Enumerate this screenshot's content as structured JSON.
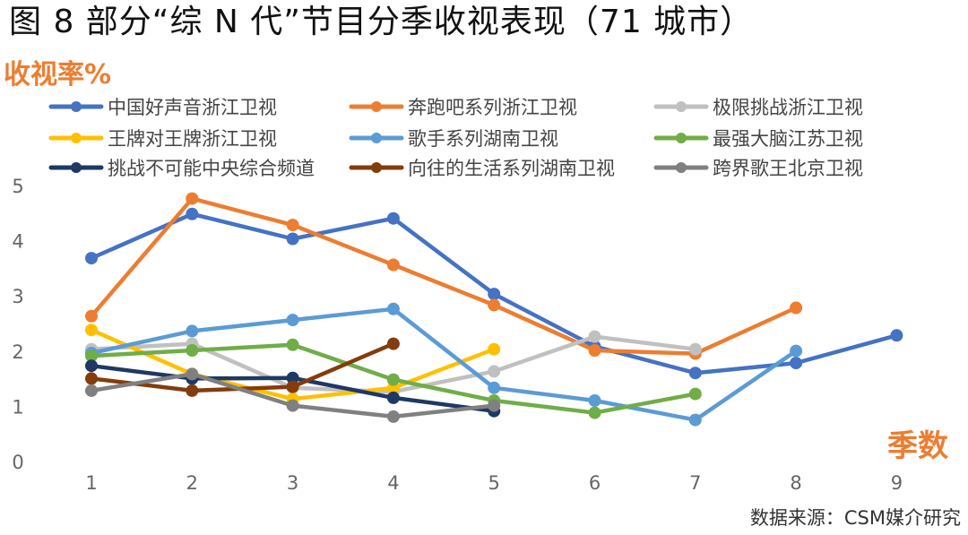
{
  "title": "图 8 部分“综 N 代”节目分季收视表现（71 城市）",
  "source": "数据来源：CSM媒介研究",
  "chart_data": {
    "type": "line",
    "title": "图 8 部分“综 N 代”节目分季收视表现（71 城市）",
    "ylabel": "收视率%",
    "xlabel": "季数",
    "x": [
      1,
      2,
      3,
      4,
      5,
      6,
      7,
      8,
      9
    ],
    "xticks": [
      "1",
      "2",
      "3",
      "4",
      "5",
      "6",
      "7",
      "8",
      "9"
    ],
    "yticks": [
      "0",
      "1",
      "2",
      "3",
      "4",
      "5"
    ],
    "ylim": [
      0,
      5
    ],
    "xlim": [
      1,
      9
    ],
    "grid": false,
    "legend_position": "top",
    "series": [
      {
        "name": "中国好声音浙江卫视",
        "color": "#4472c4",
        "values": [
          3.7,
          4.5,
          4.05,
          4.42,
          3.05,
          2.1,
          1.62,
          1.8,
          2.3
        ]
      },
      {
        "name": "奔跑吧系列浙江卫视",
        "color": "#ed7d31",
        "values": [
          2.65,
          4.78,
          4.3,
          3.58,
          2.85,
          2.03,
          1.97,
          2.8,
          null
        ]
      },
      {
        "name": "极限挑战浙江卫视",
        "color": "#c0c0c0",
        "values": [
          2.05,
          2.15,
          1.35,
          1.28,
          1.65,
          2.28,
          2.05,
          null,
          null
        ]
      },
      {
        "name": "王牌对王牌浙江卫视",
        "color": "#ffc000",
        "values": [
          2.4,
          1.6,
          1.15,
          1.35,
          2.05,
          null,
          null,
          null,
          null
        ]
      },
      {
        "name": "歌手系列湖南卫视",
        "color": "#5b9bd5",
        "values": [
          1.98,
          2.38,
          2.58,
          2.78,
          1.35,
          1.12,
          0.77,
          2.02,
          null
        ]
      },
      {
        "name": "最强大脑江苏卫视",
        "color": "#70ad47",
        "values": [
          1.93,
          2.03,
          2.13,
          1.5,
          1.12,
          0.9,
          1.24,
          null,
          null
        ]
      },
      {
        "name": "挑战不可能中央综合频道",
        "color": "#1f3864",
        "values": [
          1.75,
          1.52,
          1.53,
          1.17,
          0.93,
          null,
          null,
          null,
          null
        ]
      },
      {
        "name": "向往的生活系列湖南卫视",
        "color": "#843c0c",
        "values": [
          1.52,
          1.3,
          1.37,
          2.15,
          null,
          null,
          null,
          null,
          null
        ]
      },
      {
        "name": "跨界歌王北京卫视",
        "color": "#808080",
        "values": [
          1.3,
          1.6,
          1.03,
          0.83,
          1.03,
          null,
          null,
          null,
          null
        ]
      }
    ]
  }
}
